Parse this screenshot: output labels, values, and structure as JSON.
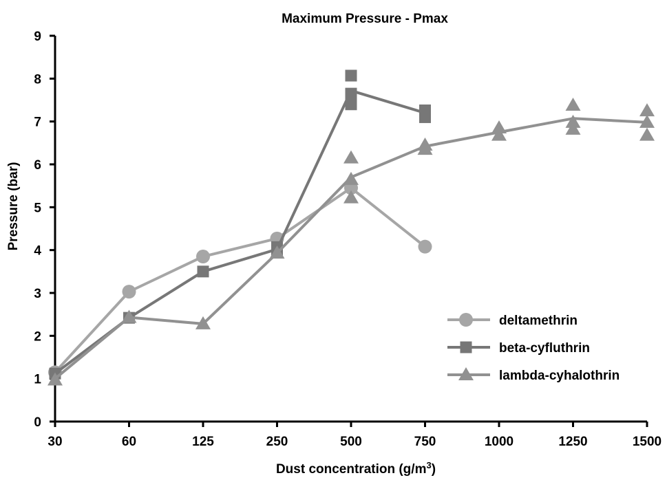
{
  "chart_data": {
    "type": "line",
    "title": "Maximum Pressure - Pmax",
    "xlabel": "Dust concentration (g/m",
    "xlabel_sup": "3",
    "xlabel_end": ")",
    "ylabel": "Pressure (bar)",
    "categories": [
      "30",
      "60",
      "125",
      "250",
      "500",
      "750",
      "1000",
      "1250",
      "1500"
    ],
    "ylim": [
      0,
      9
    ],
    "yticks": [
      "0",
      "1",
      "2",
      "3",
      "4",
      "5",
      "6",
      "7",
      "8",
      "9"
    ],
    "grid": false,
    "legend_position": "bottom-right",
    "series": [
      {
        "name": "deltamethrin",
        "marker": "circle",
        "color": "#a6a6a6",
        "line": [
          [
            0,
            1.15
          ],
          [
            1,
            3.03
          ],
          [
            2,
            3.85
          ],
          [
            3,
            4.27
          ],
          [
            4,
            5.45
          ],
          [
            5,
            4.08
          ]
        ],
        "points": [
          [
            0,
            1.15
          ],
          [
            1,
            3.03
          ],
          [
            2,
            3.85
          ],
          [
            3,
            4.27
          ],
          [
            4,
            5.45
          ],
          [
            5,
            4.08
          ]
        ]
      },
      {
        "name": "beta-cyfluthrin",
        "marker": "square",
        "color": "#777777",
        "line": [
          [
            0,
            1.12
          ],
          [
            1,
            2.42
          ],
          [
            2,
            3.5
          ],
          [
            3,
            4.02
          ],
          [
            4,
            7.72
          ],
          [
            5,
            7.2
          ]
        ],
        "points": [
          [
            0,
            1.12
          ],
          [
            1,
            2.42
          ],
          [
            2,
            3.5
          ],
          [
            3,
            4.07
          ],
          [
            3,
            3.97
          ],
          [
            4,
            8.07
          ],
          [
            4,
            7.65
          ],
          [
            4,
            7.4
          ],
          [
            5,
            7.26
          ],
          [
            5,
            7.1
          ]
        ]
      },
      {
        "name": "lambda-cyhalothrin",
        "marker": "triangle",
        "color": "#919191",
        "line": [
          [
            0,
            1.0
          ],
          [
            1,
            2.43
          ],
          [
            2,
            2.28
          ],
          [
            3,
            3.93
          ],
          [
            4,
            5.7
          ],
          [
            5,
            6.42
          ],
          [
            6,
            6.75
          ],
          [
            7,
            7.07
          ],
          [
            8,
            6.98
          ]
        ],
        "points": [
          [
            0,
            0.97
          ],
          [
            1,
            2.43
          ],
          [
            2,
            2.28
          ],
          [
            3,
            3.93
          ],
          [
            4,
            6.15
          ],
          [
            4,
            5.65
          ],
          [
            4,
            5.22
          ],
          [
            5,
            6.45
          ],
          [
            5,
            6.35
          ],
          [
            6,
            6.85
          ],
          [
            6,
            6.68
          ],
          [
            7,
            7.38
          ],
          [
            7,
            6.98
          ],
          [
            7,
            6.82
          ],
          [
            8,
            7.25
          ],
          [
            8,
            6.98
          ],
          [
            8,
            6.68
          ]
        ]
      }
    ]
  }
}
